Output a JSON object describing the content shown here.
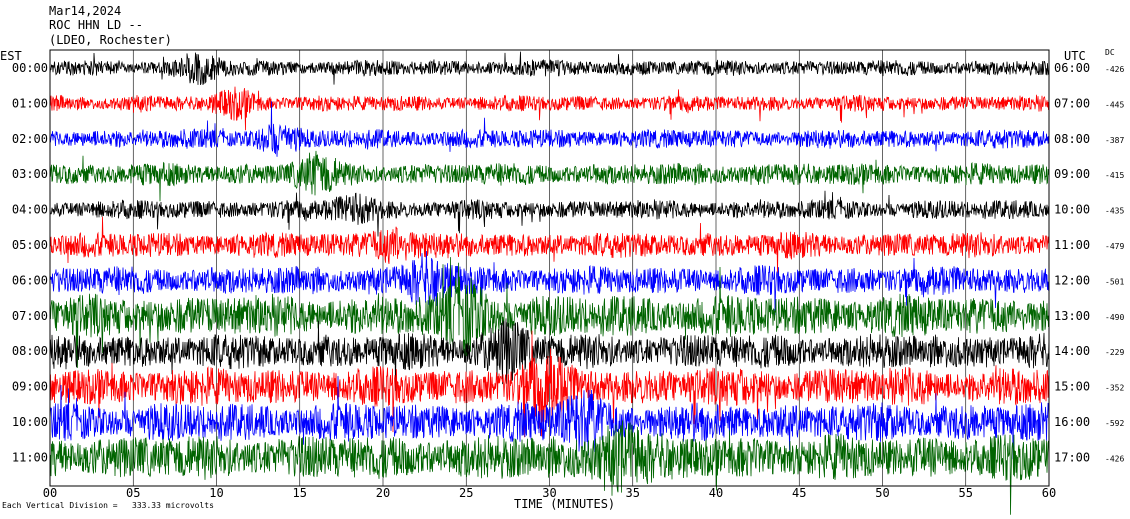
{
  "header": {
    "date": "Mar14,2024",
    "station": "ROC HHN LD --",
    "network": "(LDEO, Rochester)"
  },
  "left_timezone": "EST",
  "right_timezone": "UTC",
  "dc_label": "DC",
  "footnote": "Each Vertical Division =   333.33 microvolts",
  "chart_data": {
    "type": "line",
    "xlabel": "TIME (MINUTES)",
    "xlim": [
      0,
      60
    ],
    "x_ticks": [
      "00",
      "05",
      "10",
      "15",
      "20",
      "25",
      "30",
      "35",
      "40",
      "45",
      "50",
      "55",
      "60"
    ],
    "trace_colors": [
      "#000000",
      "#ff0000",
      "#0000ff",
      "#006400"
    ],
    "series": [
      {
        "left": "00:00",
        "right": "06:00",
        "dc": "-426",
        "color": "#000000",
        "amplitude": 0.5
      },
      {
        "left": "01:00",
        "right": "07:00",
        "dc": "-445",
        "color": "#ff0000",
        "amplitude": 0.5
      },
      {
        "left": "02:00",
        "right": "08:00",
        "dc": "-387",
        "color": "#0000ff",
        "amplitude": 0.6
      },
      {
        "left": "03:00",
        "right": "09:00",
        "dc": "-415",
        "color": "#006400",
        "amplitude": 0.7
      },
      {
        "left": "04:00",
        "right": "10:00",
        "dc": "-435",
        "color": "#000000",
        "amplitude": 0.6
      },
      {
        "left": "05:00",
        "right": "11:00",
        "dc": "-479",
        "color": "#ff0000",
        "amplitude": 0.8
      },
      {
        "left": "06:00",
        "right": "12:00",
        "dc": "-501",
        "color": "#0000ff",
        "amplitude": 0.9
      },
      {
        "left": "07:00",
        "right": "13:00",
        "dc": "-490",
        "color": "#006400",
        "amplitude": 1.3
      },
      {
        "left": "08:00",
        "right": "14:00",
        "dc": "-229",
        "color": "#000000",
        "amplitude": 1.1
      },
      {
        "left": "09:00",
        "right": "15:00",
        "dc": "-352",
        "color": "#ff0000",
        "amplitude": 1.2
      },
      {
        "left": "10:00",
        "right": "16:00",
        "dc": "-592",
        "color": "#0000ff",
        "amplitude": 1.2
      },
      {
        "left": "11:00",
        "right": "17:00",
        "dc": "-426",
        "color": "#006400",
        "amplitude": 1.4
      }
    ]
  }
}
